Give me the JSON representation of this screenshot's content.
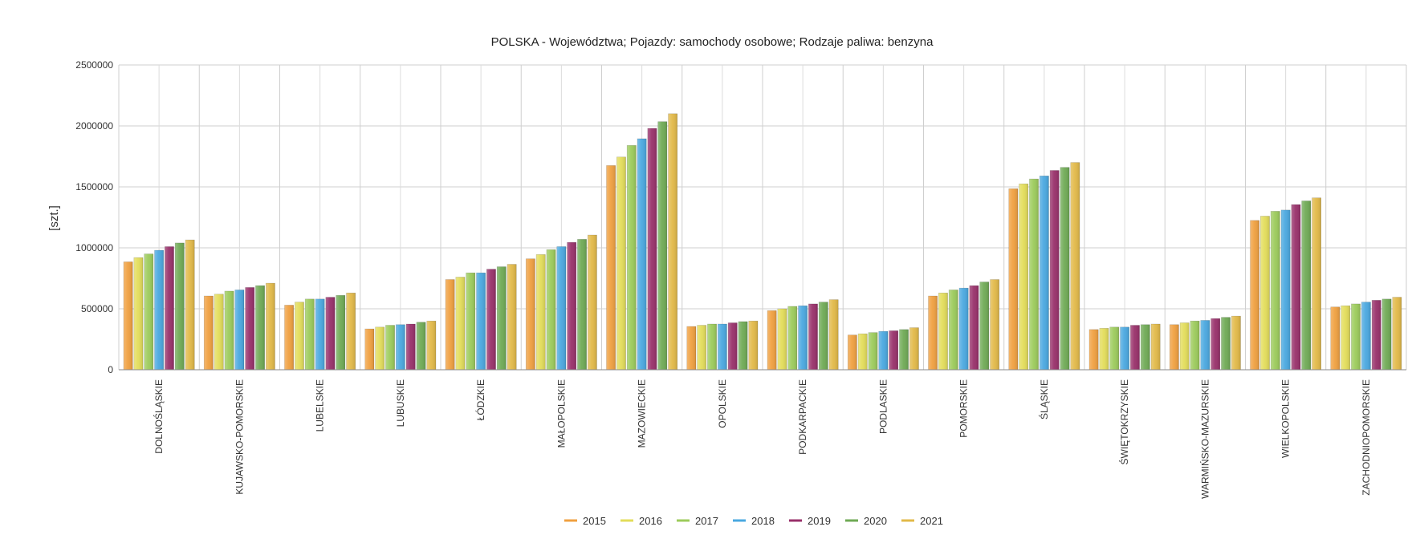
{
  "chart_data": {
    "type": "bar",
    "title": "POLSKA - Województwa; Pojazdy: samochody osobowe; Rodzaje paliwa: benzyna",
    "xlabel": "",
    "ylabel": "[szt.]",
    "ylim": [
      0,
      2500000
    ],
    "yticks": [
      "0",
      "500000",
      "1000000",
      "1500000",
      "2000000",
      "2500000"
    ],
    "grid": true,
    "legend_position": "bottom",
    "categories": [
      "DOLNOŚLĄSKIE",
      "KUJAWSKO-POMORSKIE",
      "LUBELSKIE",
      "LUBUSKIE",
      "ŁÓDZKIE",
      "MAŁOPOLSKIE",
      "MAZOWIECKIE",
      "OPOLSKIE",
      "PODKARPACKIE",
      "PODLASKIE",
      "POMORSKIE",
      "ŚLĄSKIE",
      "ŚWIĘTOKRZYSKIE",
      "WARMIŃSKO-MAZURSKIE",
      "WIELKOPOLSKIE",
      "ZACHODNIOPOMORSKIE"
    ],
    "series": [
      {
        "name": "2015",
        "color": "#F0A040",
        "values": [
          885000,
          605000,
          530000,
          335000,
          740000,
          910000,
          1675000,
          355000,
          485000,
          285000,
          605000,
          1485000,
          330000,
          370000,
          1225000,
          515000
        ]
      },
      {
        "name": "2016",
        "color": "#E3DD5A",
        "values": [
          920000,
          620000,
          555000,
          350000,
          760000,
          945000,
          1745000,
          365000,
          500000,
          295000,
          630000,
          1525000,
          340000,
          385000,
          1260000,
          525000
        ]
      },
      {
        "name": "2017",
        "color": "#9CCB5B",
        "values": [
          950000,
          645000,
          580000,
          365000,
          795000,
          985000,
          1840000,
          375000,
          520000,
          305000,
          655000,
          1565000,
          350000,
          400000,
          1300000,
          540000
        ]
      },
      {
        "name": "2018",
        "color": "#4AA8E0",
        "values": [
          980000,
          655000,
          580000,
          370000,
          795000,
          1010000,
          1895000,
          375000,
          525000,
          315000,
          670000,
          1590000,
          350000,
          405000,
          1310000,
          555000
        ]
      },
      {
        "name": "2019",
        "color": "#98306A",
        "values": [
          1010000,
          675000,
          595000,
          375000,
          825000,
          1045000,
          1980000,
          385000,
          540000,
          320000,
          690000,
          1635000,
          365000,
          420000,
          1355000,
          570000
        ]
      },
      {
        "name": "2020",
        "color": "#6FAA55",
        "values": [
          1040000,
          690000,
          610000,
          390000,
          845000,
          1070000,
          2035000,
          395000,
          555000,
          330000,
          720000,
          1660000,
          370000,
          430000,
          1385000,
          580000
        ]
      },
      {
        "name": "2021",
        "color": "#E2B948",
        "values": [
          1065000,
          710000,
          630000,
          400000,
          865000,
          1105000,
          2100000,
          400000,
          575000,
          345000,
          740000,
          1700000,
          375000,
          440000,
          1410000,
          595000
        ]
      }
    ]
  }
}
